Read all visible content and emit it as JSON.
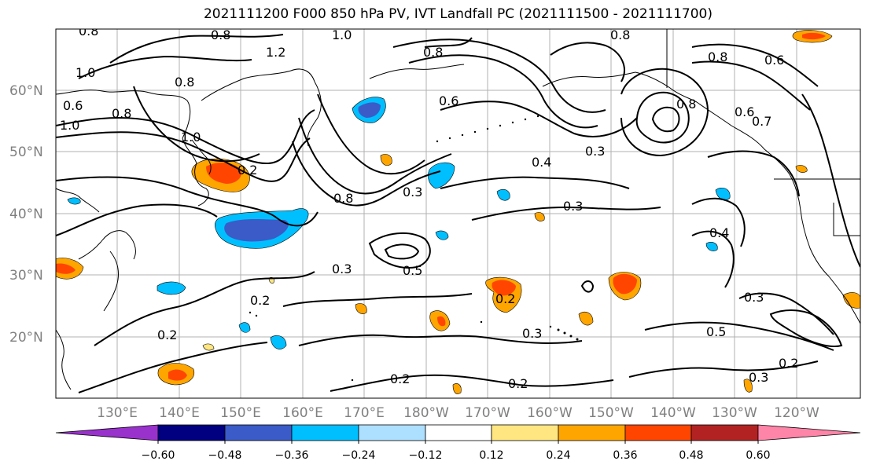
{
  "title": "2021111200 F000 850 hPa PV, IVT Landfall PC (2021111500 - 2021111700)",
  "lat_labels": [
    "60°N",
    "50°N",
    "40°N",
    "30°N",
    "20°N"
  ],
  "lon_labels": [
    "130°E",
    "140°E",
    "150°E",
    "160°E",
    "170°E",
    "180°W",
    "170°W",
    "160°W",
    "150°W",
    "140°W",
    "130°W",
    "120°W"
  ],
  "colorbar": {
    "colors": [
      "#9932CC",
      "#000080",
      "#3A5BC8",
      "#00BFFF",
      "#ADDFFF",
      "#FFFFFF",
      "#FFE680",
      "#FFA500",
      "#FF4500",
      "#B22222",
      "#FF85A8"
    ],
    "tick_labels": [
      "−0.60",
      "−0.48",
      "−0.36",
      "−0.24",
      "−0.12",
      "0.12",
      "0.24",
      "0.36",
      "0.48",
      "0.60"
    ]
  },
  "contour_labels": [
    "0.8",
    "0.8",
    "1.0",
    "0.8",
    "0.8",
    "1.0",
    "0.8",
    "1.2",
    "0.6",
    "0.8",
    "1.0",
    "0.6",
    "0.8",
    "0.8",
    "1.0",
    "0.2",
    "0.8",
    "0.3",
    "0.6",
    "0.3",
    "0.4",
    "0.3",
    "0.3",
    "0.2",
    "0.5",
    "0.2",
    "0.2",
    "0.3",
    "0.3",
    "0.5",
    "0.2",
    "0.2",
    "0.3",
    "0.2",
    "0.4",
    "0.6",
    "0.7"
  ]
}
